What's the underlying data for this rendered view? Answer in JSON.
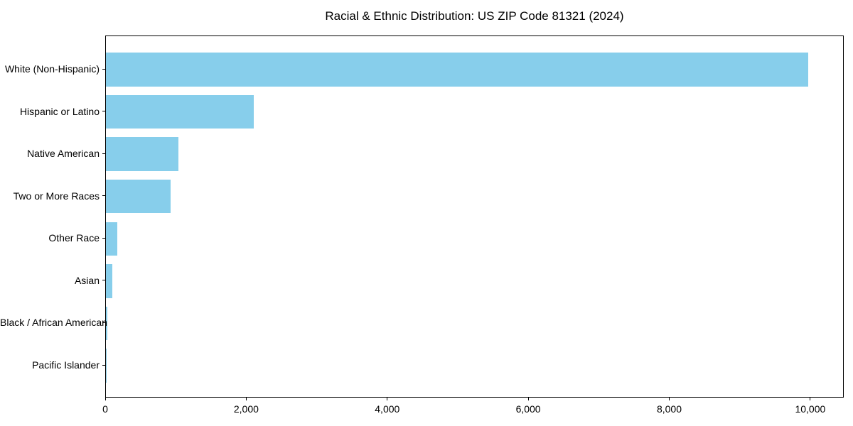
{
  "title": "Racial & Ethnic Distribution: US ZIP Code 81321 (2024)",
  "chart_data": {
    "type": "bar",
    "orientation": "horizontal",
    "title": "Racial & Ethnic Distribution: US ZIP Code 81321 (2024)",
    "categories": [
      "White (Non-Hispanic)",
      "Hispanic or Latino",
      "Native American",
      "Two or More Races",
      "Other Race",
      "Asian",
      "Black / African American",
      "Pacific Islander"
    ],
    "values": [
      9960,
      2100,
      1030,
      915,
      160,
      90,
      18,
      3
    ],
    "xlabel": "",
    "ylabel": "",
    "xlim": [
      0,
      10475
    ],
    "x_ticks": [
      0,
      2000,
      4000,
      6000,
      8000,
      10000
    ],
    "x_tick_labels": [
      "0",
      "2,000",
      "4,000",
      "6,000",
      "8,000",
      "10,000"
    ],
    "bar_color": "#87CEEB",
    "spine_color": "#000000",
    "text_color": "#000000",
    "background_color": "#FFFFFF",
    "grid": false,
    "legend_position": "none"
  }
}
